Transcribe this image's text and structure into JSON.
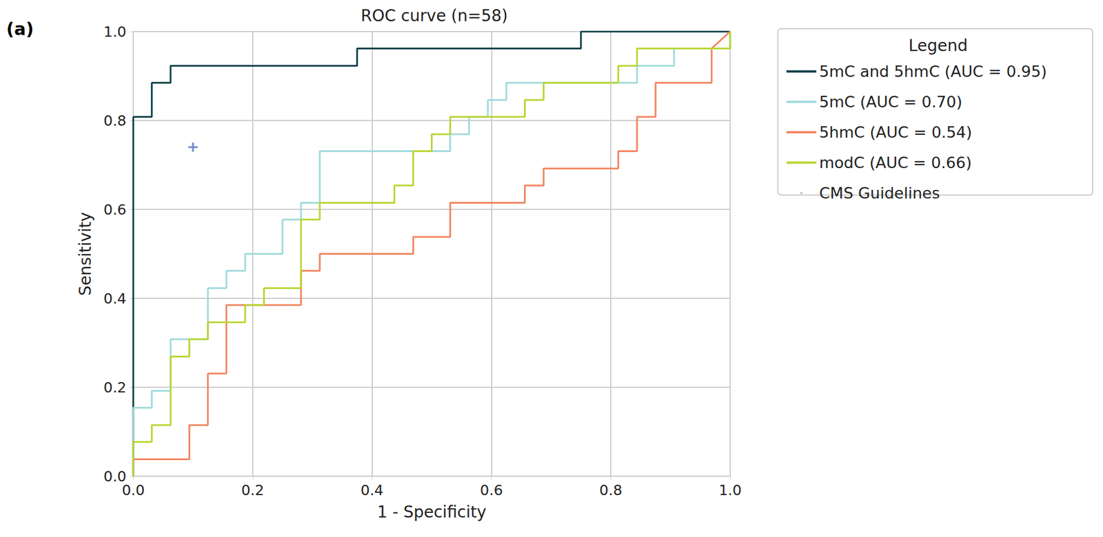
{
  "chart_data": {
    "type": "line",
    "panel_label": "(a)",
    "title": "ROC curve (n=58)",
    "x_label": "1 - Specificity",
    "y_label": "Sensitivity",
    "legend_title": "Legend",
    "legend": "upper right outside",
    "grid": true,
    "xlim": [
      0,
      1
    ],
    "ylim": [
      0,
      1
    ],
    "xticks": [
      {
        "value": 0,
        "label": "0.0"
      },
      0.2,
      0.4,
      0.6,
      0.8,
      {
        "value": 1,
        "label": "1.0"
      }
    ],
    "yticks": [
      {
        "value": 0,
        "label": "0.0"
      },
      0.2,
      0.4,
      0.6,
      0.8,
      {
        "value": 1,
        "label": "1.0"
      }
    ],
    "series": [
      {
        "name": "5mC and 5hmC (AUC = 0.95)",
        "color": "#0d3d47",
        "type": "line",
        "line_style": "solid",
        "x": [
          0,
          0,
          0.031,
          0.031,
          0.0625,
          0.0625,
          0.375,
          0.375,
          0.75,
          0.75,
          1
        ],
        "values": [
          0,
          0.808,
          0.808,
          0.885,
          0.885,
          0.923,
          0.923,
          0.962,
          0.962,
          1,
          1
        ]
      },
      {
        "name": "5mC (AUC = 0.70)",
        "color": "#9fdadd",
        "type": "line",
        "line_style": "solid",
        "x": [
          0,
          0,
          0.031,
          0.031,
          0.0625,
          0.0625,
          0.125,
          0.125,
          0.156,
          0.156,
          0.1875,
          0.1875,
          0.25,
          0.25,
          0.281,
          0.281,
          0.3125,
          0.3125,
          0.531,
          0.531,
          0.5625,
          0.5625,
          0.594,
          0.594,
          0.625,
          0.625,
          0.844,
          0.844,
          0.906,
          0.906,
          1,
          1
        ],
        "values": [
          0,
          0.154,
          0.154,
          0.192,
          0.192,
          0.308,
          0.308,
          0.423,
          0.423,
          0.462,
          0.462,
          0.5,
          0.5,
          0.577,
          0.577,
          0.615,
          0.615,
          0.731,
          0.731,
          0.769,
          0.769,
          0.808,
          0.808,
          0.846,
          0.846,
          0.885,
          0.885,
          0.923,
          0.923,
          0.962,
          0.962,
          1
        ]
      },
      {
        "name": "5hmC (AUC = 0.54)",
        "color": "#f2845f",
        "type": "line",
        "line_style": "solid",
        "x": [
          0,
          0,
          0.094,
          0.094,
          0.125,
          0.125,
          0.156,
          0.156,
          0.281,
          0.281,
          0.3125,
          0.3125,
          0.469,
          0.469,
          0.531,
          0.531,
          0.656,
          0.656,
          0.6875,
          0.6875,
          0.8125,
          0.8125,
          0.844,
          0.844,
          0.875,
          0.875,
          0.969,
          0.969,
          1
        ],
        "values": [
          0,
          0.038,
          0.038,
          0.115,
          0.115,
          0.231,
          0.231,
          0.385,
          0.385,
          0.462,
          0.462,
          0.5,
          0.5,
          0.538,
          0.538,
          0.615,
          0.615,
          0.654,
          0.654,
          0.692,
          0.692,
          0.731,
          0.731,
          0.808,
          0.808,
          0.885,
          0.885,
          0.962,
          1
        ]
      },
      {
        "name": "modC (AUC = 0.66)",
        "color": "#b8d630",
        "type": "line",
        "line_style": "solid",
        "x": [
          0,
          0,
          0.031,
          0.031,
          0.0625,
          0.0625,
          0.094,
          0.094,
          0.125,
          0.125,
          0.1875,
          0.1875,
          0.219,
          0.219,
          0.281,
          0.281,
          0.3125,
          0.3125,
          0.4375,
          0.4375,
          0.469,
          0.469,
          0.5,
          0.5,
          0.531,
          0.531,
          0.656,
          0.656,
          0.6875,
          0.6875,
          0.8125,
          0.8125,
          0.844,
          0.844,
          1,
          1
        ],
        "values": [
          0,
          0.077,
          0.077,
          0.115,
          0.115,
          0.269,
          0.269,
          0.308,
          0.308,
          0.346,
          0.346,
          0.385,
          0.385,
          0.423,
          0.423,
          0.577,
          0.577,
          0.615,
          0.615,
          0.654,
          0.654,
          0.731,
          0.731,
          0.769,
          0.769,
          0.808,
          0.808,
          0.846,
          0.846,
          0.885,
          0.885,
          0.923,
          0.923,
          0.962,
          0.962,
          1
        ]
      },
      {
        "name": "CMS Guidelines",
        "color": "#4a6fbf",
        "type": "scatter",
        "marker": "plus",
        "x": [
          0.1
        ],
        "values": [
          0.74
        ]
      }
    ]
  }
}
